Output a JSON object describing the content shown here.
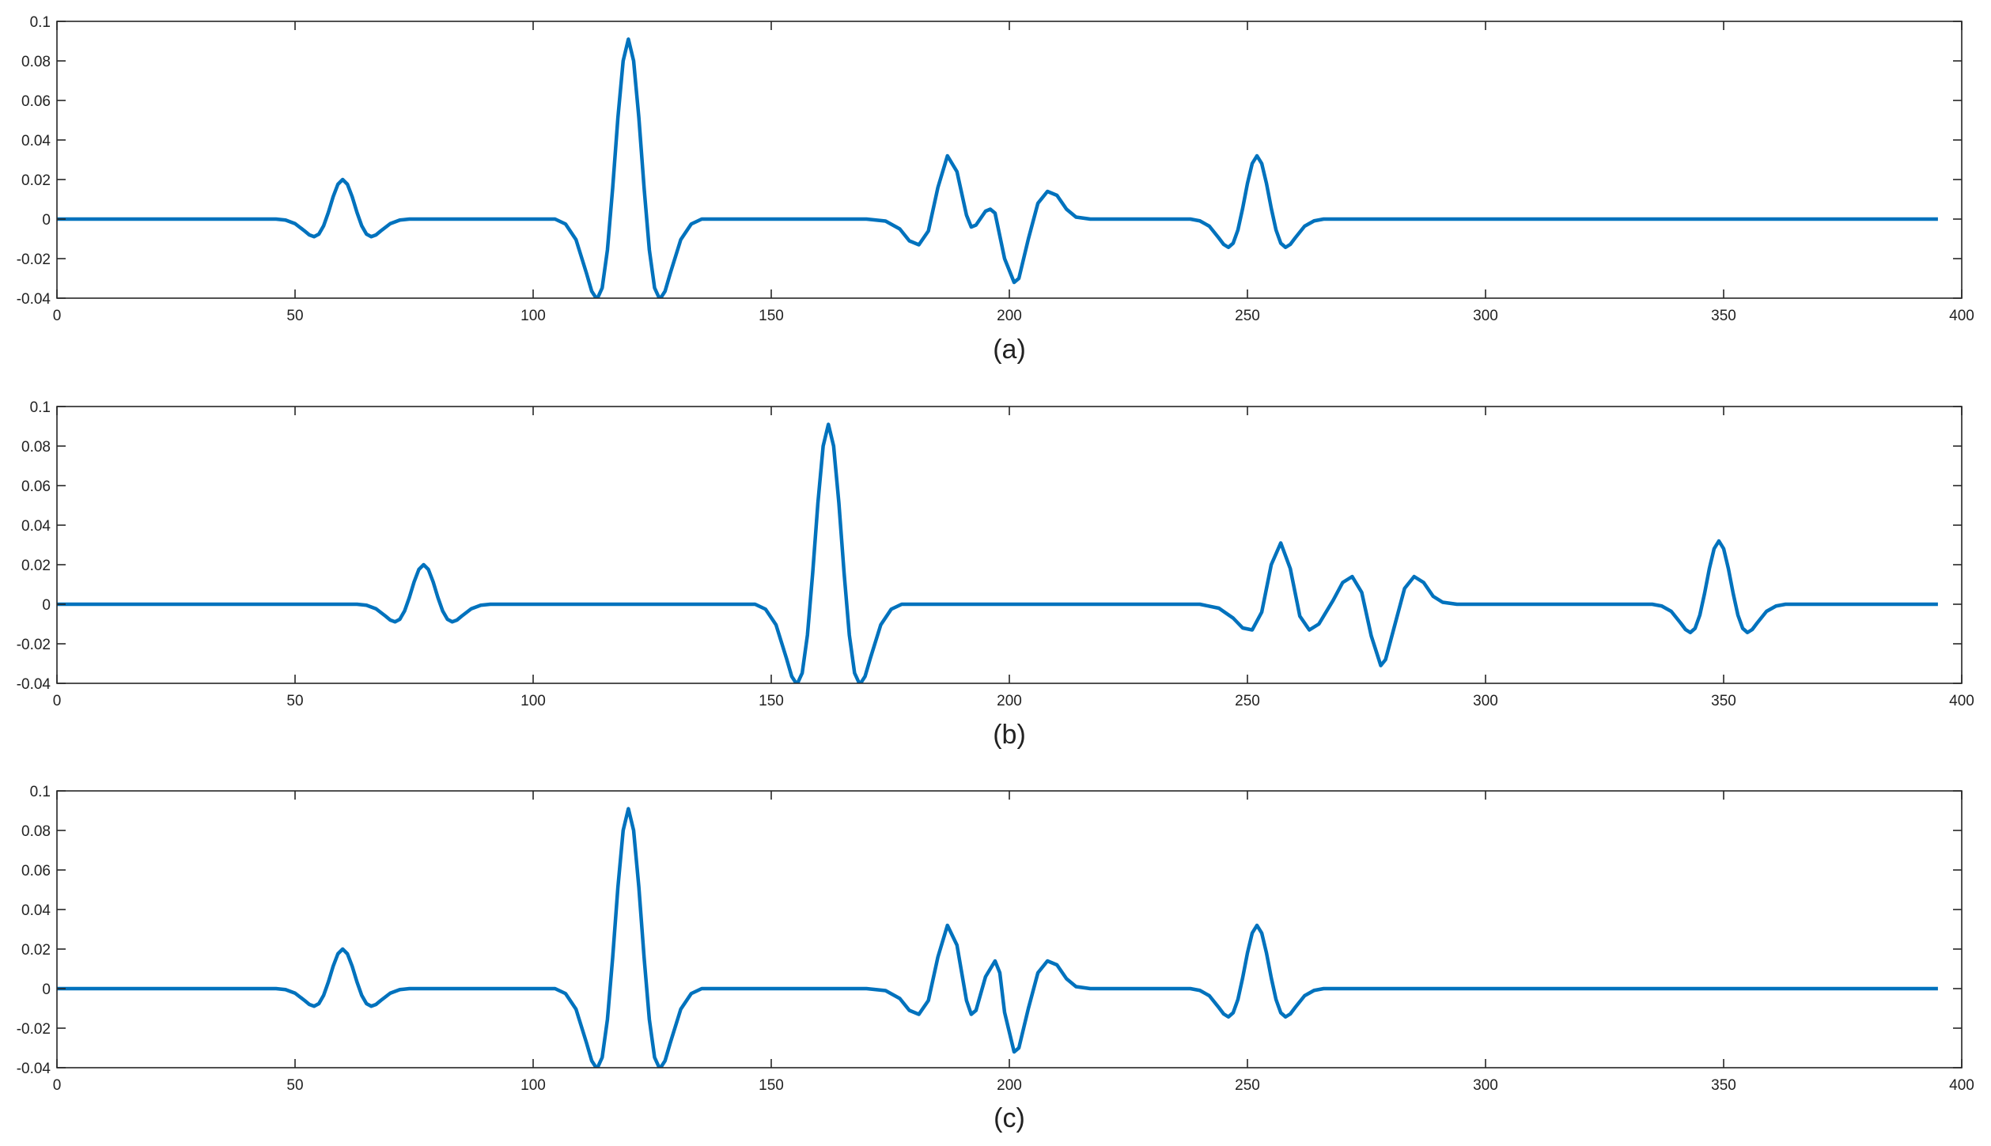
{
  "chart_data": [
    {
      "type": "line",
      "xlabel": "(a)",
      "x": [
        0,
        46,
        48,
        50,
        52,
        53,
        54,
        55,
        56,
        57,
        58,
        59,
        60,
        61,
        62,
        63,
        64,
        65,
        66,
        67,
        68,
        70,
        72,
        74,
        104.6,
        106.8,
        109,
        111.2,
        112.3,
        113.4,
        114.5,
        115.6,
        116.7,
        117.8,
        118.9,
        120,
        121.1,
        122.2,
        123.3,
        124.4,
        125.5,
        126.6,
        127.7,
        128.8,
        131,
        133.2,
        135.4,
        170,
        174,
        177,
        179,
        181,
        183,
        185,
        187,
        189,
        191,
        192,
        193,
        195,
        196,
        197,
        199,
        201,
        202,
        204,
        206,
        208,
        210,
        212,
        214,
        217,
        220,
        238,
        240,
        242,
        244,
        245,
        246,
        247,
        248,
        249,
        250,
        251,
        252,
        253,
        254,
        255,
        256,
        257,
        258,
        259,
        260,
        262,
        264,
        266,
        395
      ],
      "series": [
        {
          "color": "#0072bd",
          "values": [
            0,
            0,
            -0.0005,
            -0.0023,
            -0.006,
            -0.008,
            -0.0089,
            -0.0076,
            -0.0034,
            0.0034,
            0.0113,
            0.0176,
            0.02,
            0.0176,
            0.0113,
            0.0034,
            -0.0034,
            -0.0076,
            -0.0089,
            -0.008,
            -0.006,
            -0.0023,
            -0.0005,
            0,
            0,
            -0.0025,
            -0.0104,
            -0.0274,
            -0.0365,
            -0.0406,
            -0.0348,
            -0.0156,
            0.0157,
            0.0513,
            0.08,
            0.091,
            0.08,
            0.0513,
            0.0157,
            -0.0156,
            -0.0348,
            -0.0406,
            -0.0365,
            -0.0274,
            -0.0104,
            -0.0025,
            0,
            0,
            -0.001,
            -0.005,
            -0.011,
            -0.013,
            -0.006,
            0.016,
            0.032,
            0.024,
            0.002,
            -0.004,
            -0.003,
            0.004,
            0.005,
            0.003,
            -0.02,
            -0.032,
            -0.03,
            -0.01,
            0.008,
            0.014,
            0.012,
            0.005,
            0.001,
            0,
            0,
            0,
            -0.0009,
            -0.0036,
            -0.0096,
            -0.0128,
            -0.0143,
            -0.0122,
            -0.0055,
            0.0055,
            0.018,
            0.0281,
            0.032,
            0.0281,
            0.018,
            0.0055,
            -0.0055,
            -0.0122,
            -0.0143,
            -0.0128,
            -0.0096,
            -0.0036,
            -0.0009,
            0,
            0
          ]
        }
      ],
      "xlim": [
        0,
        400
      ],
      "ylim": [
        -0.04,
        0.1
      ],
      "xticks": [
        0,
        50,
        100,
        150,
        200,
        250,
        300,
        350,
        400
      ],
      "yticks": [
        -0.04,
        -0.02,
        0,
        0.02,
        0.04,
        0.06,
        0.08,
        0.1
      ]
    },
    {
      "type": "line",
      "xlabel": "(b)",
      "x": [
        0,
        63,
        65,
        67,
        69,
        70,
        71,
        72,
        73,
        74,
        75,
        76,
        77,
        78,
        79,
        80,
        81,
        82,
        83,
        84,
        85,
        87,
        89,
        91,
        146.6,
        148.8,
        151,
        153.2,
        154.3,
        155.4,
        156.5,
        157.6,
        158.7,
        159.8,
        160.9,
        162,
        163.1,
        164.2,
        165.3,
        166.4,
        167.5,
        168.6,
        169.7,
        170.8,
        173,
        175.2,
        177.4,
        240,
        244,
        247,
        249,
        251,
        253,
        255,
        257,
        259,
        261,
        263,
        265,
        268,
        270,
        272,
        274,
        276,
        278,
        279,
        281,
        283,
        285,
        287,
        289,
        291,
        294,
        297,
        335,
        337,
        339,
        341,
        342,
        343,
        344,
        345,
        346,
        347,
        348,
        349,
        350,
        351,
        352,
        353,
        354,
        355,
        356,
        357,
        359,
        361,
        363,
        395
      ],
      "series": [
        {
          "color": "#0072bd",
          "values": [
            0,
            0,
            -0.0005,
            -0.0023,
            -0.006,
            -0.008,
            -0.0089,
            -0.0076,
            -0.0034,
            0.0034,
            0.0113,
            0.0176,
            0.02,
            0.0176,
            0.0113,
            0.0034,
            -0.0034,
            -0.0076,
            -0.0089,
            -0.008,
            -0.006,
            -0.0023,
            -0.0005,
            0,
            0,
            -0.0025,
            -0.0104,
            -0.0274,
            -0.0365,
            -0.0406,
            -0.0348,
            -0.0156,
            0.0157,
            0.0513,
            0.08,
            0.091,
            0.08,
            0.0513,
            0.0157,
            -0.0156,
            -0.0348,
            -0.0406,
            -0.0365,
            -0.0274,
            -0.0104,
            -0.0025,
            0,
            0,
            -0.002,
            -0.007,
            -0.012,
            -0.013,
            -0.004,
            0.02,
            0.031,
            0.018,
            -0.006,
            -0.013,
            -0.01,
            0.002,
            0.011,
            0.014,
            0.006,
            -0.016,
            -0.031,
            -0.028,
            -0.01,
            0.008,
            0.014,
            0.011,
            0.004,
            0.001,
            0,
            0,
            0,
            -0.0009,
            -0.0036,
            -0.0096,
            -0.0128,
            -0.0143,
            -0.0122,
            -0.0055,
            0.0055,
            0.018,
            0.0281,
            0.032,
            0.0281,
            0.018,
            0.0055,
            -0.0055,
            -0.0122,
            -0.0143,
            -0.0128,
            -0.0096,
            -0.0036,
            -0.0009,
            0,
            0
          ]
        }
      ],
      "xlim": [
        0,
        400
      ],
      "ylim": [
        -0.04,
        0.1
      ],
      "xticks": [
        0,
        50,
        100,
        150,
        200,
        250,
        300,
        350,
        400
      ],
      "yticks": [
        -0.04,
        -0.02,
        0,
        0.02,
        0.04,
        0.06,
        0.08,
        0.1
      ]
    },
    {
      "type": "line",
      "xlabel": "(c)",
      "x": [
        0,
        46,
        48,
        50,
        52,
        53,
        54,
        55,
        56,
        57,
        58,
        59,
        60,
        61,
        62,
        63,
        64,
        65,
        66,
        67,
        68,
        70,
        72,
        74,
        104.6,
        106.8,
        109,
        111.2,
        112.3,
        113.4,
        114.5,
        115.6,
        116.7,
        117.8,
        118.9,
        120,
        121.1,
        122.2,
        123.3,
        124.4,
        125.5,
        126.6,
        127.7,
        128.8,
        131,
        133.2,
        135.4,
        170,
        174,
        177,
        179,
        181,
        183,
        185,
        187,
        189,
        191,
        192,
        193,
        195,
        197,
        198,
        199,
        201,
        202,
        204,
        206,
        208,
        210,
        212,
        214,
        217,
        220,
        238,
        240,
        242,
        244,
        245,
        246,
        247,
        248,
        249,
        250,
        251,
        252,
        253,
        254,
        255,
        256,
        257,
        258,
        259,
        260,
        262,
        264,
        266,
        395
      ],
      "series": [
        {
          "color": "#0072bd",
          "values": [
            0,
            0,
            -0.0005,
            -0.0023,
            -0.006,
            -0.008,
            -0.0089,
            -0.0076,
            -0.0034,
            0.0034,
            0.0113,
            0.0176,
            0.02,
            0.0176,
            0.0113,
            0.0034,
            -0.0034,
            -0.0076,
            -0.0089,
            -0.008,
            -0.006,
            -0.0023,
            -0.0005,
            0,
            0,
            -0.0025,
            -0.0104,
            -0.0274,
            -0.0365,
            -0.0406,
            -0.0348,
            -0.0156,
            0.0157,
            0.0513,
            0.08,
            0.091,
            0.08,
            0.0513,
            0.0157,
            -0.0156,
            -0.0348,
            -0.0406,
            -0.0365,
            -0.0274,
            -0.0104,
            -0.0025,
            0,
            0,
            -0.001,
            -0.005,
            -0.011,
            -0.013,
            -0.006,
            0.016,
            0.032,
            0.022,
            -0.006,
            -0.013,
            -0.011,
            0.006,
            0.014,
            0.008,
            -0.012,
            -0.032,
            -0.03,
            -0.01,
            0.008,
            0.014,
            0.012,
            0.005,
            0.001,
            0,
            0,
            0,
            -0.0009,
            -0.0036,
            -0.0096,
            -0.0128,
            -0.0143,
            -0.0122,
            -0.0055,
            0.0055,
            0.018,
            0.0281,
            0.032,
            0.0281,
            0.018,
            0.0055,
            -0.0055,
            -0.0122,
            -0.0143,
            -0.0128,
            -0.0096,
            -0.0036,
            -0.0009,
            0,
            0
          ]
        }
      ],
      "xlim": [
        0,
        400
      ],
      "ylim": [
        -0.04,
        0.1
      ],
      "xticks": [
        0,
        50,
        100,
        150,
        200,
        250,
        300,
        350,
        400
      ],
      "yticks": [
        -0.04,
        -0.02,
        0,
        0.02,
        0.04,
        0.06,
        0.08,
        0.1
      ]
    }
  ]
}
